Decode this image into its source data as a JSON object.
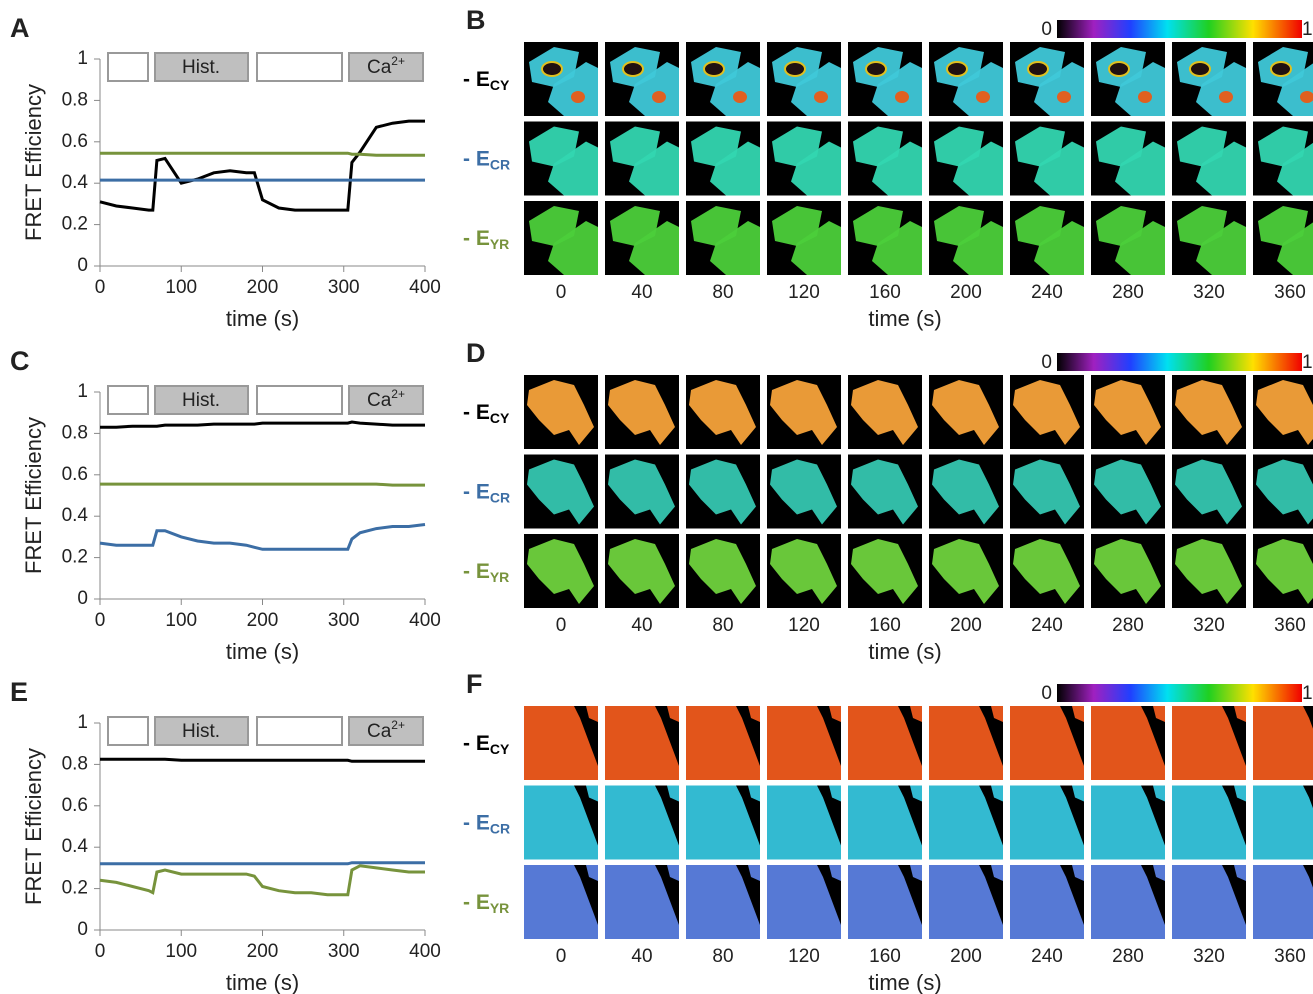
{
  "chart_data": [
    {
      "type": "line",
      "panel_label": "A",
      "xlabel": "time (s)",
      "ylabel": "FRET Efficiency",
      "hist_label": "Hist.",
      "ca_label": {
        "base": "Ca",
        "sup": "2+"
      },
      "x": [
        0,
        20,
        40,
        60,
        65,
        70,
        80,
        100,
        120,
        140,
        160,
        180,
        190,
        200,
        220,
        240,
        260,
        280,
        300,
        305,
        310,
        320,
        340,
        360,
        380,
        400
      ],
      "series": [
        {
          "color": "#000000",
          "values": [
            0.31,
            0.29,
            0.28,
            0.27,
            0.27,
            0.51,
            0.52,
            0.4,
            0.42,
            0.45,
            0.46,
            0.45,
            0.45,
            0.32,
            0.28,
            0.27,
            0.27,
            0.27,
            0.27,
            0.27,
            0.5,
            0.55,
            0.67,
            0.69,
            0.7,
            0.7
          ]
        },
        {
          "color": "#3c6ea5",
          "values": [
            0.415,
            0.415,
            0.415,
            0.415,
            0.415,
            0.415,
            0.415,
            0.415,
            0.415,
            0.415,
            0.415,
            0.415,
            0.415,
            0.415,
            0.415,
            0.415,
            0.415,
            0.415,
            0.415,
            0.415,
            0.415,
            0.415,
            0.415,
            0.415,
            0.415,
            0.415
          ]
        },
        {
          "color": "#77933c",
          "values": [
            0.545,
            0.545,
            0.545,
            0.545,
            0.545,
            0.545,
            0.545,
            0.545,
            0.545,
            0.545,
            0.545,
            0.545,
            0.545,
            0.545,
            0.545,
            0.545,
            0.545,
            0.545,
            0.545,
            0.545,
            0.54,
            0.54,
            0.535,
            0.535,
            0.535,
            0.535
          ]
        }
      ],
      "xlim": [
        0,
        400
      ],
      "ylim": [
        0,
        1
      ],
      "xticks": [
        0,
        100,
        200,
        300,
        400
      ],
      "yticks": [
        0,
        0.2,
        0.4,
        0.6,
        0.8,
        1
      ]
    },
    {
      "type": "line",
      "panel_label": "C",
      "xlabel": "time (s)",
      "ylabel": "FRET Efficiency",
      "hist_label": "Hist.",
      "ca_label": {
        "base": "Ca",
        "sup": "2+"
      },
      "x": [
        0,
        20,
        40,
        60,
        65,
        70,
        80,
        100,
        120,
        140,
        160,
        180,
        190,
        200,
        220,
        240,
        260,
        280,
        300,
        305,
        310,
        320,
        340,
        360,
        380,
        400
      ],
      "series": [
        {
          "color": "#000000",
          "values": [
            0.83,
            0.83,
            0.835,
            0.835,
            0.835,
            0.835,
            0.84,
            0.84,
            0.84,
            0.845,
            0.845,
            0.845,
            0.845,
            0.85,
            0.85,
            0.85,
            0.85,
            0.85,
            0.85,
            0.85,
            0.855,
            0.85,
            0.845,
            0.84,
            0.84,
            0.84
          ]
        },
        {
          "color": "#3c6ea5",
          "values": [
            0.27,
            0.26,
            0.26,
            0.26,
            0.26,
            0.33,
            0.33,
            0.3,
            0.28,
            0.27,
            0.27,
            0.26,
            0.25,
            0.24,
            0.24,
            0.24,
            0.24,
            0.24,
            0.24,
            0.24,
            0.29,
            0.32,
            0.34,
            0.35,
            0.35,
            0.36
          ]
        },
        {
          "color": "#77933c",
          "values": [
            0.555,
            0.555,
            0.555,
            0.555,
            0.555,
            0.555,
            0.555,
            0.555,
            0.555,
            0.555,
            0.555,
            0.555,
            0.555,
            0.555,
            0.555,
            0.555,
            0.555,
            0.555,
            0.555,
            0.555,
            0.555,
            0.555,
            0.555,
            0.55,
            0.55,
            0.55
          ]
        }
      ],
      "xlim": [
        0,
        400
      ],
      "ylim": [
        0,
        1
      ],
      "xticks": [
        0,
        100,
        200,
        300,
        400
      ],
      "yticks": [
        0,
        0.2,
        0.4,
        0.6,
        0.8,
        1
      ]
    },
    {
      "type": "line",
      "panel_label": "E",
      "xlabel": "time (s)",
      "ylabel": "FRET Efficiency",
      "hist_label": "Hist.",
      "ca_label": {
        "base": "Ca",
        "sup": "2+"
      },
      "x": [
        0,
        20,
        40,
        60,
        65,
        70,
        80,
        100,
        120,
        140,
        160,
        180,
        190,
        200,
        220,
        240,
        260,
        280,
        300,
        305,
        310,
        320,
        340,
        360,
        380,
        400
      ],
      "series": [
        {
          "color": "#000000",
          "values": [
            0.825,
            0.825,
            0.825,
            0.825,
            0.825,
            0.825,
            0.825,
            0.82,
            0.82,
            0.82,
            0.82,
            0.82,
            0.82,
            0.82,
            0.82,
            0.82,
            0.82,
            0.82,
            0.82,
            0.82,
            0.815,
            0.815,
            0.815,
            0.815,
            0.815,
            0.815
          ]
        },
        {
          "color": "#3c6ea5",
          "values": [
            0.32,
            0.32,
            0.32,
            0.32,
            0.32,
            0.32,
            0.32,
            0.32,
            0.32,
            0.32,
            0.32,
            0.32,
            0.32,
            0.32,
            0.32,
            0.32,
            0.32,
            0.32,
            0.32,
            0.32,
            0.325,
            0.325,
            0.325,
            0.325,
            0.325,
            0.325
          ]
        },
        {
          "color": "#77933c",
          "values": [
            0.24,
            0.23,
            0.21,
            0.19,
            0.18,
            0.28,
            0.29,
            0.27,
            0.27,
            0.27,
            0.27,
            0.27,
            0.26,
            0.21,
            0.19,
            0.18,
            0.18,
            0.17,
            0.17,
            0.17,
            0.29,
            0.31,
            0.3,
            0.29,
            0.28,
            0.28
          ]
        }
      ],
      "xlim": [
        0,
        400
      ],
      "ylim": [
        0,
        1
      ],
      "xticks": [
        0,
        100,
        200,
        300,
        400
      ],
      "yticks": [
        0,
        0.2,
        0.4,
        0.6,
        0.8,
        1
      ]
    }
  ],
  "image_panels": [
    {
      "panel_label": "B",
      "colorbar_ticks": [
        0,
        1
      ],
      "times": [
        0,
        40,
        80,
        120,
        160,
        200,
        240,
        280,
        320,
        360
      ],
      "xlabel": "time (s)",
      "rows": [
        {
          "prefix": "- E",
          "sub": "CY",
          "color": "#000000"
        },
        {
          "prefix": "- E",
          "sub": "CR",
          "color": "#3c6ea5"
        },
        {
          "prefix": "- E",
          "sub": "YR",
          "color": "#77933c"
        }
      ]
    },
    {
      "panel_label": "D",
      "colorbar_ticks": [
        0,
        1
      ],
      "times": [
        0,
        40,
        80,
        120,
        160,
        200,
        240,
        280,
        320,
        360
      ],
      "xlabel": "time (s)",
      "rows": [
        {
          "prefix": "- E",
          "sub": "CY",
          "color": "#000000"
        },
        {
          "prefix": "- E",
          "sub": "CR",
          "color": "#3c6ea5"
        },
        {
          "prefix": "- E",
          "sub": "YR",
          "color": "#77933c"
        }
      ]
    },
    {
      "panel_label": "F",
      "colorbar_ticks": [
        0,
        1
      ],
      "times": [
        0,
        40,
        80,
        120,
        160,
        200,
        240,
        280,
        320,
        360
      ],
      "xlabel": "time (s)",
      "rows": [
        {
          "prefix": "- E",
          "sub": "CY",
          "color": "#000000"
        },
        {
          "prefix": "- E",
          "sub": "CR",
          "color": "#3c6ea5"
        },
        {
          "prefix": "- E",
          "sub": "YR",
          "color": "#77933c"
        }
      ]
    }
  ]
}
